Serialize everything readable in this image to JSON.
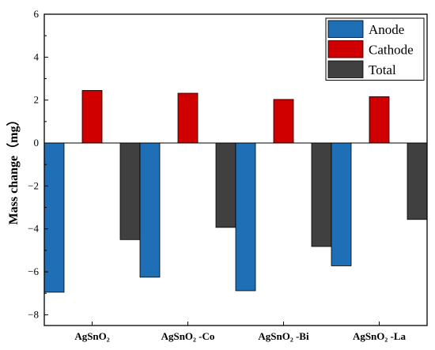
{
  "chart_data": {
    "type": "bar",
    "categories": [
      "AgSnO₂",
      "AgSnO₂ -Co",
      "AgSnO₂ -Bi",
      "AgSnO₂ -La"
    ],
    "series": [
      {
        "name": "Anode",
        "color": "#1f6fb7",
        "values": [
          -6.95,
          -6.25,
          -6.88,
          -5.72
        ]
      },
      {
        "name": "Cathode",
        "color": "#d10000",
        "values": [
          2.45,
          2.32,
          2.03,
          2.16
        ]
      },
      {
        "name": "Total",
        "color": "#404040",
        "values": [
          -4.5,
          -3.93,
          -4.82,
          -3.56
        ]
      }
    ],
    "title": "",
    "xlabel": "",
    "ylabel": "Mass change（mg）",
    "ylim": [
      -8.5,
      6
    ],
    "yticks": [
      -8,
      -6,
      -4,
      -2,
      0,
      2,
      4,
      6
    ],
    "grid": false,
    "legend_position": "top-right"
  }
}
